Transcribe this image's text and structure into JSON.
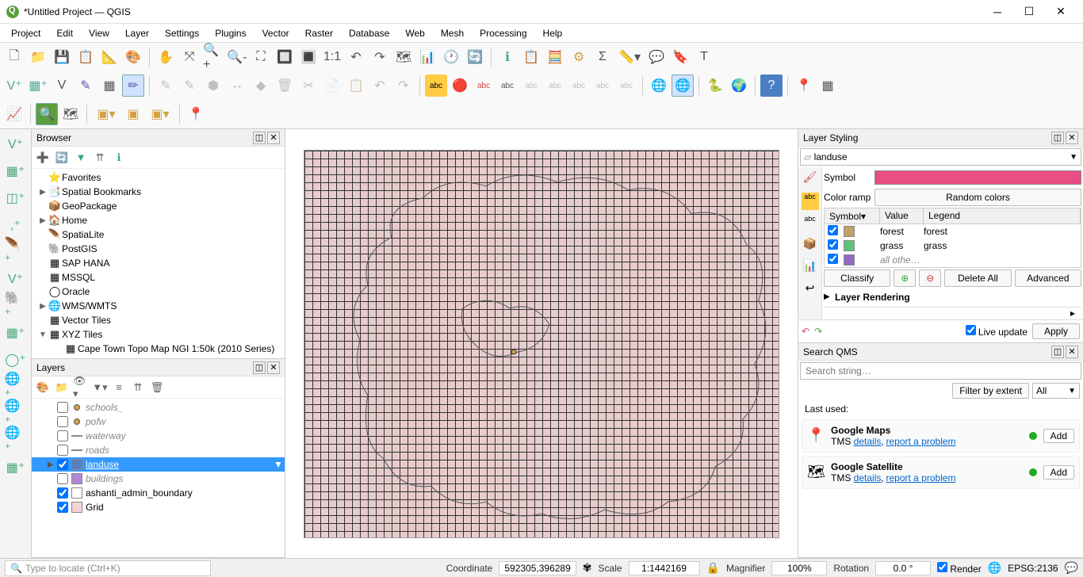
{
  "window": {
    "title": "*Untitled Project — QGIS"
  },
  "menus": [
    "Project",
    "Edit",
    "View",
    "Layer",
    "Settings",
    "Plugins",
    "Vector",
    "Raster",
    "Database",
    "Web",
    "Mesh",
    "Processing",
    "Help"
  ],
  "browser": {
    "title": "Browser",
    "items": [
      {
        "icon": "⭐",
        "label": "Favorites",
        "exp": ""
      },
      {
        "icon": "📑",
        "label": "Spatial Bookmarks",
        "exp": "▶"
      },
      {
        "icon": "📦",
        "label": "GeoPackage",
        "exp": ""
      },
      {
        "icon": "🏠",
        "label": "Home",
        "exp": "▶"
      },
      {
        "icon": "🪶",
        "label": "SpatiaLite",
        "exp": ""
      },
      {
        "icon": "🐘",
        "label": "PostGIS",
        "exp": ""
      },
      {
        "icon": "▦",
        "label": "SAP HANA",
        "exp": ""
      },
      {
        "icon": "▦",
        "label": "MSSQL",
        "exp": ""
      },
      {
        "icon": "◯",
        "label": "Oracle",
        "exp": ""
      },
      {
        "icon": "🌐",
        "label": "WMS/WMTS",
        "exp": "▶"
      },
      {
        "icon": "▦",
        "label": "Vector Tiles",
        "exp": ""
      },
      {
        "icon": "▦",
        "label": "XYZ Tiles",
        "exp": "▼",
        "child": "Cape Town Topo Map NGI 1:50k (2010 Series)"
      }
    ]
  },
  "layers": {
    "title": "Layers",
    "items": [
      {
        "checked": false,
        "color": "#d4a044",
        "name": "schools_",
        "italic": true,
        "dot": true
      },
      {
        "checked": false,
        "color": "#d4a044",
        "name": "pofw",
        "italic": true,
        "dot": true
      },
      {
        "checked": false,
        "color": "#888",
        "name": "waterway",
        "italic": true,
        "line": true
      },
      {
        "checked": false,
        "color": "#888",
        "name": "roads",
        "italic": true,
        "line": true
      },
      {
        "checked": true,
        "color": "#5a7fbf",
        "name": "landuse",
        "selected": true,
        "exp": "▶",
        "filter": "▼"
      },
      {
        "checked": false,
        "color": "#b088d4",
        "name": "buildings",
        "italic": true
      },
      {
        "checked": true,
        "color": "#ffffff",
        "name": "ashanti_admin_boundary"
      },
      {
        "checked": true,
        "color": "#f4d4d4",
        "name": "Grid"
      }
    ]
  },
  "styling": {
    "title": "Layer Styling",
    "layer": "landuse",
    "symbol_label": "Symbol",
    "symbol_color": "#e84d84",
    "ramp_label": "Color ramp",
    "ramp_value": "Random colors",
    "col_symbol": "Symbol",
    "col_value": "Value",
    "col_legend": "Legend",
    "rows": [
      {
        "checked": true,
        "color": "#c4a068",
        "value": "forest",
        "legend": "forest"
      },
      {
        "checked": true,
        "color": "#5ec47a",
        "value": "grass",
        "legend": "grass"
      },
      {
        "checked": true,
        "color": "#9468c4",
        "value": "all othe…",
        "legend": "",
        "italic": true
      }
    ],
    "btn_classify": "Classify",
    "btn_delete": "Delete All",
    "btn_advanced": "Advanced",
    "rendering_label": "Layer Rendering",
    "live_update": "Live update",
    "apply": "Apply"
  },
  "qms": {
    "title": "Search QMS",
    "placeholder": "Search string…",
    "filter_extent": "Filter by extent",
    "filter_all": "All",
    "last_used": "Last used:",
    "items": [
      {
        "icon": "📍",
        "name": "Google Maps",
        "sub_prefix": "TMS ",
        "link1": "details",
        "link2": "report a problem",
        "add": "Add"
      },
      {
        "icon": "🗺",
        "name": "Google Satellite",
        "sub_prefix": "TMS ",
        "link1": "details",
        "link2": "report a problem",
        "add": "Add"
      }
    ]
  },
  "status": {
    "locator_placeholder": "Type to locate (Ctrl+K)",
    "coord_label": "Coordinate",
    "coord_value": "592305,396289",
    "scale_label": "Scale",
    "scale_value": "1:1442169",
    "mag_label": "Magnifier",
    "mag_value": "100%",
    "rot_label": "Rotation",
    "rot_value": "0.0 °",
    "render": "Render",
    "crs": "EPSG:2136"
  }
}
